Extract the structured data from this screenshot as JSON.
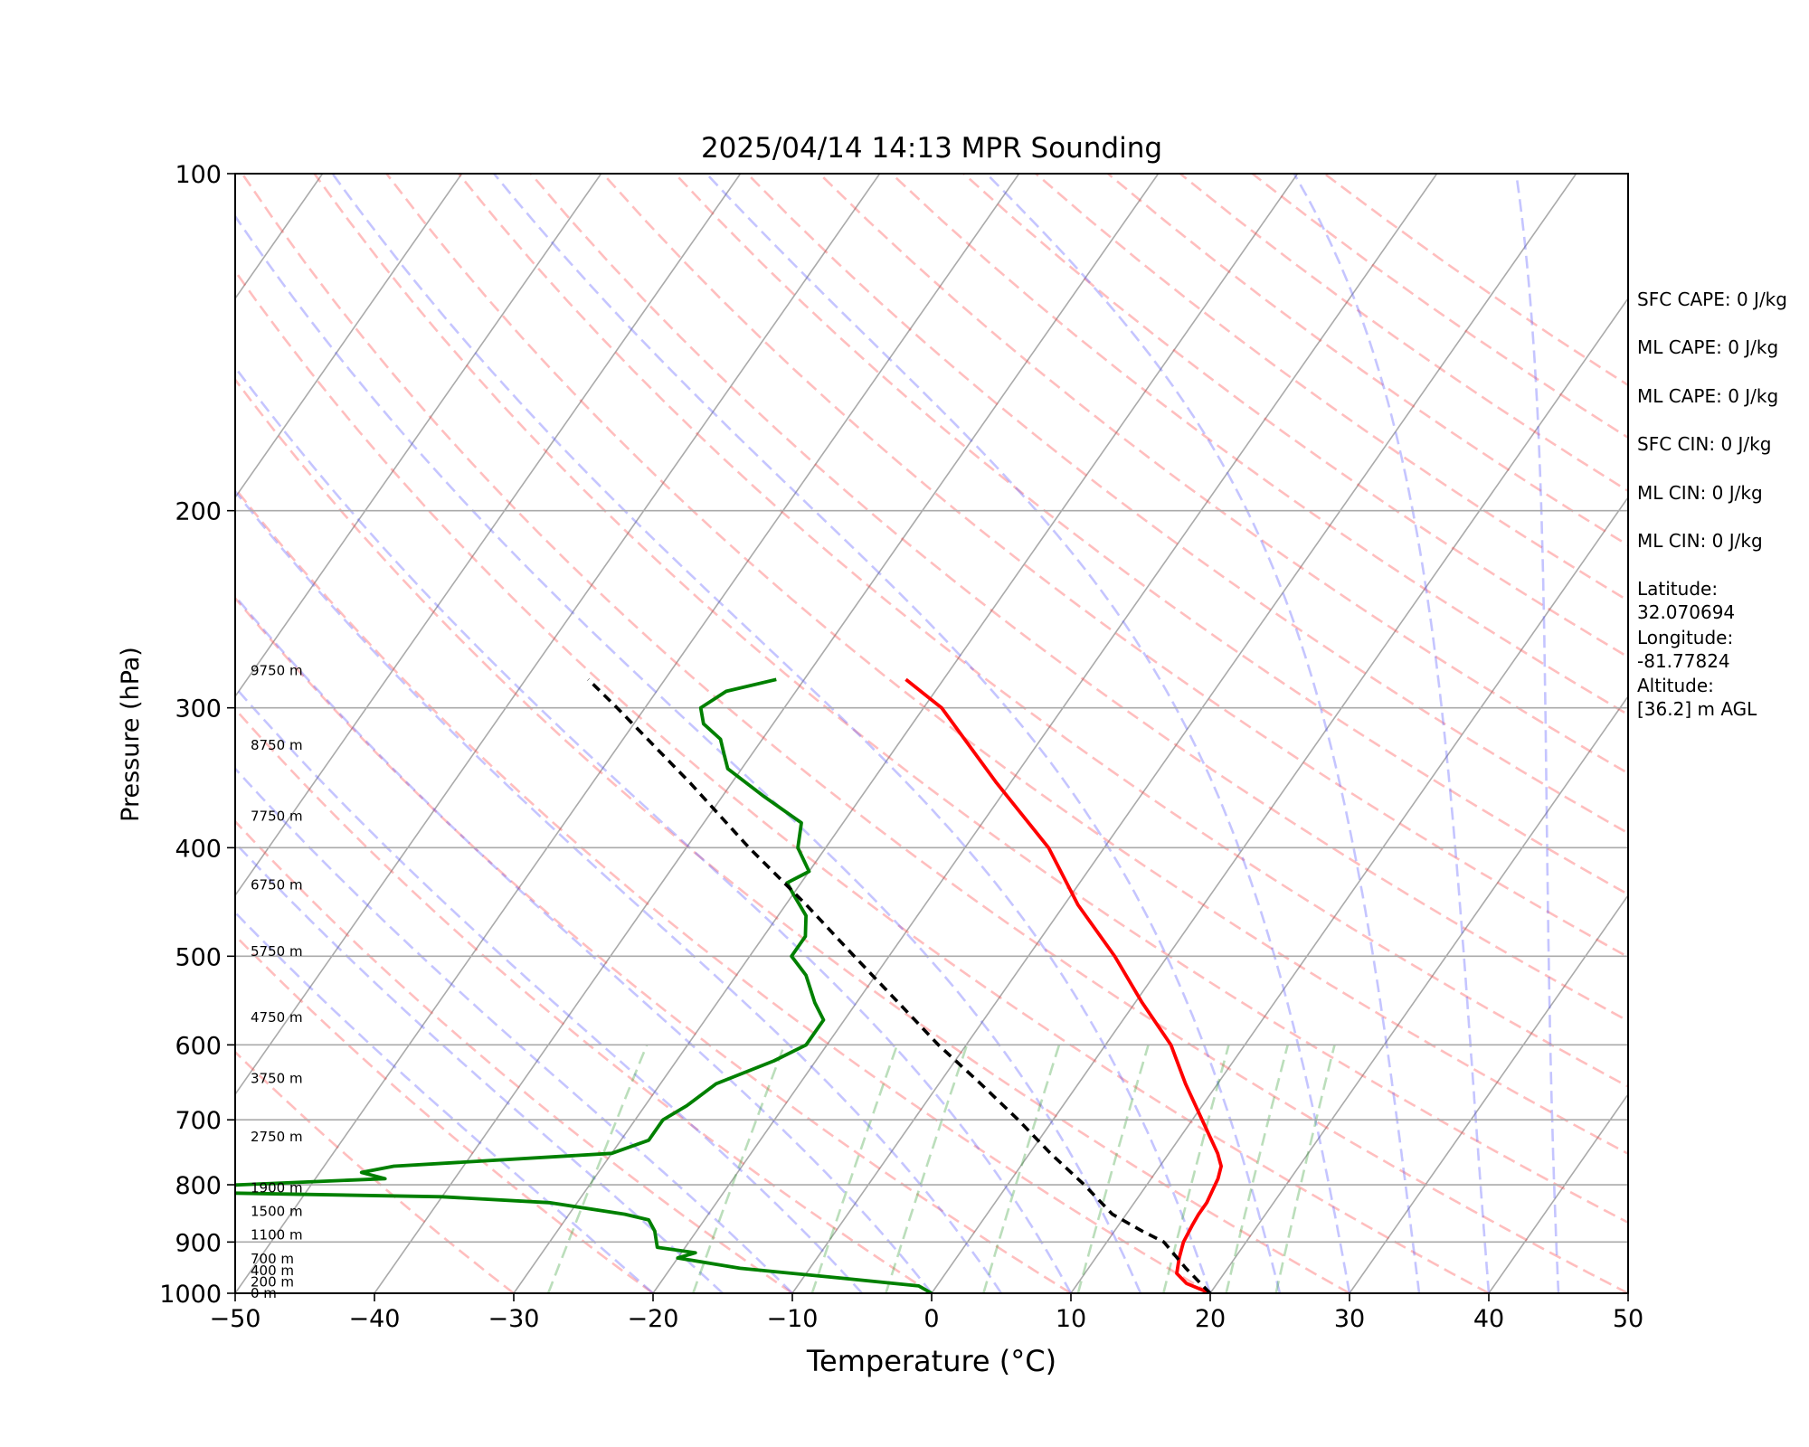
{
  "chart_data": {
    "type": "skew-t",
    "title": "2025/04/14 14:13 MPR Sounding",
    "xlabel": "Temperature (°C)",
    "ylabel": "Pressure (hPa)",
    "xlim": [
      -50,
      50
    ],
    "ylim": [
      1000,
      100
    ],
    "x_ticks": [
      -50,
      -40,
      -30,
      -20,
      -10,
      0,
      10,
      20,
      30,
      40,
      50
    ],
    "x_tick_labels": [
      "−50",
      "−40",
      "−30",
      "−20",
      "−10",
      "0",
      "10",
      "20",
      "30",
      "40",
      "50"
    ],
    "y_ticks": [
      1000,
      900,
      800,
      700,
      600,
      500,
      400,
      300,
      200,
      100
    ],
    "y_tick_labels": [
      "1000",
      "900",
      "800",
      "700",
      "600",
      "500",
      "400",
      "300",
      "200",
      "100"
    ],
    "grid": "horizontal at pressure ticks",
    "height_labels": [
      {
        "p": 1000,
        "label": "0 m"
      },
      {
        "p": 977,
        "label": "200 m"
      },
      {
        "p": 955,
        "label": "400 m"
      },
      {
        "p": 932,
        "label": "700 m"
      },
      {
        "p": 887,
        "label": "1100 m"
      },
      {
        "p": 845,
        "label": "1500 m"
      },
      {
        "p": 805,
        "label": "1900 m"
      },
      {
        "p": 725,
        "label": "2750 m"
      },
      {
        "p": 643,
        "label": "3750 m"
      },
      {
        "p": 567,
        "label": "4750 m"
      },
      {
        "p": 495,
        "label": "5750 m"
      },
      {
        "p": 432,
        "label": "6750 m"
      },
      {
        "p": 375,
        "label": "7750 m"
      },
      {
        "p": 324,
        "label": "8750 m"
      },
      {
        "p": 278,
        "label": "9750 m"
      }
    ],
    "series": [
      {
        "color": "#ff0000",
        "points": [
          [
            1000,
            20
          ],
          [
            980,
            17.8
          ],
          [
            960,
            16.6
          ],
          [
            930,
            16
          ],
          [
            900,
            15.5
          ],
          [
            870,
            15.3
          ],
          [
            850,
            15.2
          ],
          [
            830,
            15.2
          ],
          [
            810,
            15
          ],
          [
            790,
            14.8
          ],
          [
            770,
            14.4
          ],
          [
            750,
            13.5
          ],
          [
            700,
            10.7
          ],
          [
            650,
            7.7
          ],
          [
            600,
            4.7
          ],
          [
            550,
            0.5
          ],
          [
            500,
            -3.8
          ],
          [
            450,
            -9
          ],
          [
            400,
            -14
          ],
          [
            350,
            -21
          ],
          [
            300,
            -28.7
          ],
          [
            283,
            -32.7
          ]
        ]
      },
      {
        "color": "#008000",
        "points": [
          [
            1000,
            0
          ],
          [
            985,
            -1.3
          ],
          [
            970,
            -7
          ],
          [
            950,
            -15
          ],
          [
            930,
            -20
          ],
          [
            920,
            -19
          ],
          [
            910,
            -22
          ],
          [
            880,
            -23
          ],
          [
            860,
            -24
          ],
          [
            850,
            -26
          ],
          [
            830,
            -32
          ],
          [
            820,
            -40
          ],
          [
            810,
            -65
          ],
          [
            800,
            -55
          ],
          [
            790,
            -45
          ],
          [
            780,
            -47
          ],
          [
            770,
            -45
          ],
          [
            750,
            -30
          ],
          [
            730,
            -28
          ],
          [
            700,
            -28
          ],
          [
            680,
            -27
          ],
          [
            650,
            -26
          ],
          [
            620,
            -23
          ],
          [
            600,
            -21.5
          ],
          [
            570,
            -21.5
          ],
          [
            550,
            -23
          ],
          [
            520,
            -25
          ],
          [
            500,
            -27
          ],
          [
            480,
            -27
          ],
          [
            460,
            -28
          ],
          [
            440,
            -30
          ],
          [
            430,
            -31
          ],
          [
            420,
            -30
          ],
          [
            400,
            -32
          ],
          [
            380,
            -33
          ],
          [
            360,
            -37
          ],
          [
            340,
            -41
          ],
          [
            330,
            -42
          ],
          [
            320,
            -43
          ],
          [
            310,
            -45
          ],
          [
            300,
            -46
          ],
          [
            290,
            -45
          ],
          [
            283,
            -42
          ]
        ]
      },
      {
        "color": "#000000",
        "dashed": true,
        "points": [
          [
            1000,
            20
          ],
          [
            950,
            17
          ],
          [
            900,
            14.1
          ],
          [
            880,
            12
          ],
          [
            850,
            9
          ],
          [
            800,
            5.5
          ],
          [
            750,
            1.5
          ],
          [
            700,
            -2.5
          ],
          [
            650,
            -7
          ],
          [
            600,
            -12
          ],
          [
            550,
            -17
          ],
          [
            500,
            -22.5
          ],
          [
            450,
            -28.5
          ],
          [
            400,
            -35.5
          ],
          [
            350,
            -43
          ],
          [
            300,
            -52
          ],
          [
            283,
            -55.5
          ]
        ]
      }
    ]
  },
  "info_panel": [
    "SFC CAPE: 0 J/kg",
    "ML CAPE: 0 J/kg",
    "ML CAPE: 0 J/kg",
    "SFC CIN: 0 J/kg",
    "ML CIN: 0 J/kg",
    "ML CIN: 0 J/kg",
    "Latitude:\n32.070694",
    "Longitude:\n-81.77824",
    "Altitude:\n[36.2] m AGL"
  ]
}
